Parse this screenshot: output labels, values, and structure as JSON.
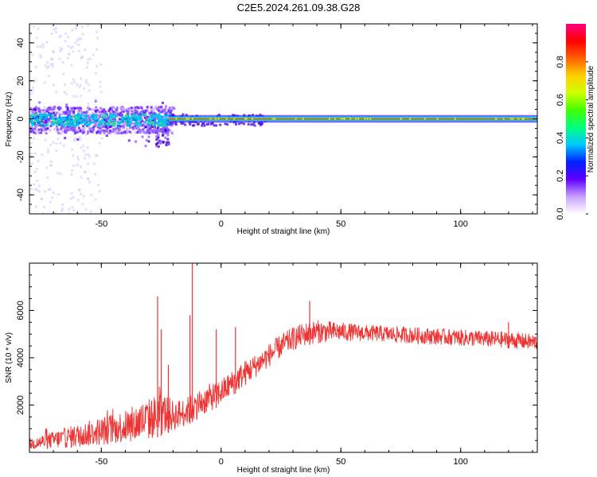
{
  "title": "C2E5.2024.261.09.38.G28",
  "chart_data": [
    {
      "type": "heatmap",
      "name": "spectrogram",
      "xlabel": "Height of straight line (km)",
      "ylabel": "Frequency (Hz)",
      "xlim": [
        -80,
        132
      ],
      "ylim": [
        -50,
        50
      ],
      "xticks": [
        -50,
        0,
        50,
        100
      ],
      "yticks": [
        -40,
        -20,
        0,
        20,
        40
      ],
      "colorbar": {
        "label": "Normalized spectral amplitude",
        "range": [
          0,
          1
        ],
        "ticks": [
          0.0,
          0.2,
          0.4,
          0.6,
          0.8
        ],
        "colors": [
          "#ffffff",
          "#c8a0ff",
          "#6000ff",
          "#0020ff",
          "#00c8ff",
          "#00ff80",
          "#40ff00",
          "#d0ff00",
          "#ffd000",
          "#ff6000",
          "#ff0000",
          "#ff0080"
        ]
      },
      "main_line": {
        "frequency": 0,
        "x_start": -22,
        "x_end": 132
      }
    },
    {
      "type": "line",
      "name": "snr",
      "xlabel": "Height of straight line (km)",
      "ylabel": "SNR (10 * v/v)",
      "xlim": [
        -80,
        132
      ],
      "ylim": [
        0,
        8000
      ],
      "xticks": [
        -50,
        0,
        50,
        100
      ],
      "yticks": [
        2000,
        4000,
        6000
      ],
      "series": [
        {
          "name": "SNR",
          "color": "#ee3333",
          "envelope": {
            "x": [
              -80,
              -70,
              -60,
              -50,
              -40,
              -30,
              -25,
              -20,
              -15,
              -10,
              -5,
              0,
              5,
              10,
              15,
              20,
              25,
              30,
              35,
              40,
              50,
              60,
              80,
              100,
              120,
              132
            ],
            "low": [
              100,
              150,
              200,
              300,
              400,
              500,
              700,
              900,
              1100,
              1400,
              1700,
              2000,
              2400,
              2800,
              3200,
              3600,
              4000,
              4300,
              4500,
              4600,
              4700,
              4700,
              4600,
              4500,
              4400,
              4300
            ],
            "high": [
              600,
              900,
              1200,
              1500,
              1800,
              2300,
              2600,
              2200,
              2300,
              2600,
              2900,
              3100,
              3500,
              3900,
              4200,
              4600,
              5000,
              5300,
              5500,
              5600,
              5500,
              5400,
              5300,
              5200,
              5100,
              5000
            ]
          },
          "spikes": [
            {
              "x": -26.5,
              "y": 6600
            },
            {
              "x": -25,
              "y": 5200
            },
            {
              "x": -22,
              "y": 3700
            },
            {
              "x": -12,
              "y": 8000
            },
            {
              "x": -13,
              "y": 5800
            },
            {
              "x": -2,
              "y": 5200
            },
            {
              "x": 6,
              "y": 5300
            },
            {
              "x": 37,
              "y": 6400
            },
            {
              "x": 120,
              "y": 5500
            }
          ]
        }
      ]
    }
  ]
}
